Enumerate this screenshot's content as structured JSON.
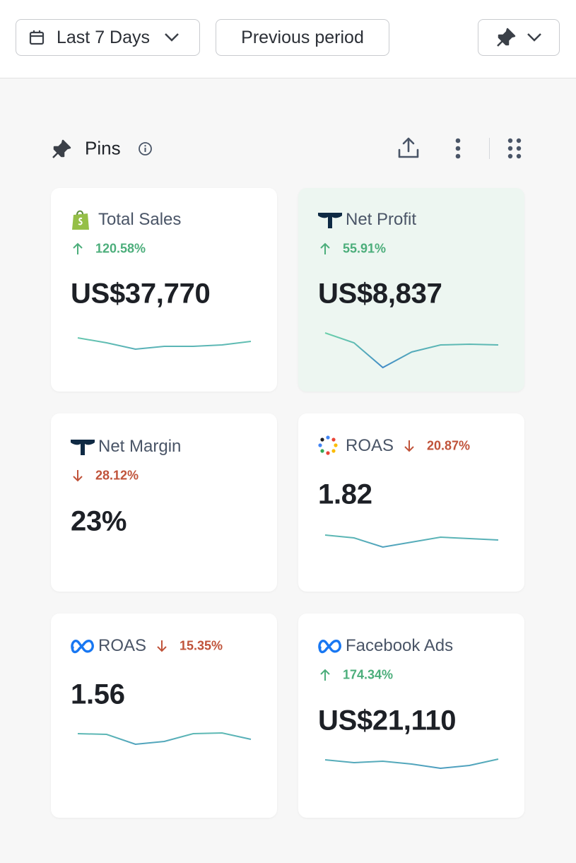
{
  "toolbar": {
    "date_range": "Last 7 Days",
    "comparison": "Previous period"
  },
  "section": {
    "title": "Pins"
  },
  "cards": [
    {
      "title": "Total Sales",
      "icon": "shopify",
      "change": "120.58%",
      "direction": "up",
      "value": "US$37,770",
      "highlight": false,
      "trend": [
        42,
        35,
        26,
        30,
        30,
        32,
        37
      ]
    },
    {
      "title": "Net Profit",
      "icon": "triplewhale",
      "change": "55.91%",
      "direction": "up",
      "value": "US$8,837",
      "highlight": true,
      "trend": [
        49,
        35,
        0,
        22,
        32,
        33,
        32
      ]
    },
    {
      "title": "Net Margin",
      "icon": "triplewhale",
      "change": "28.12%",
      "direction": "down",
      "value": "23%",
      "highlight": false
    },
    {
      "title": "ROAS",
      "icon": "google",
      "change": "20.87%",
      "direction": "down",
      "value": "1.82",
      "highlight": false,
      "trend": [
        33,
        29,
        16,
        23,
        30,
        28,
        26
      ]
    },
    {
      "title": "ROAS",
      "icon": "meta",
      "change": "15.35%",
      "direction": "down",
      "value": "1.56",
      "highlight": false,
      "trend": [
        32,
        31,
        17,
        21,
        32,
        33,
        24
      ]
    },
    {
      "title": "Facebook Ads",
      "icon": "meta",
      "change": "174.34%",
      "direction": "up",
      "value": "US$21,110",
      "highlight": false,
      "trend": [
        25,
        21,
        23,
        19,
        13,
        17,
        26
      ]
    }
  ]
}
